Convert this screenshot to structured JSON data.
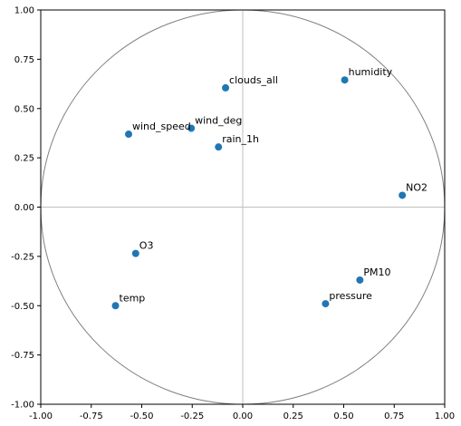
{
  "chart_data": {
    "type": "scatter",
    "title": "",
    "xlabel": "",
    "ylabel": "",
    "xlim": [
      -1.0,
      1.0
    ],
    "ylim": [
      -1.0,
      1.0
    ],
    "grid": false,
    "reference_circle_radius": 1.0,
    "reference_lines": [
      0,
      0
    ],
    "xticks": [
      "-1.00",
      "-0.75",
      "-0.50",
      "-0.25",
      "0.00",
      "0.25",
      "0.50",
      "0.75",
      "1.00"
    ],
    "yticks": [
      "1.00",
      "0.75",
      "0.50",
      "0.25",
      "0.00",
      "-0.25",
      "-0.50",
      "-0.75",
      "-1.00"
    ],
    "xtick_values": [
      -1.0,
      -0.75,
      -0.5,
      -0.25,
      0.0,
      0.25,
      0.5,
      0.75,
      1.0
    ],
    "ytick_values": [
      1.0,
      0.75,
      0.5,
      0.25,
      0.0,
      -0.25,
      -0.5,
      -0.75,
      -1.0
    ],
    "points": [
      {
        "label": "humidity",
        "x": 0.505,
        "y": 0.645
      },
      {
        "label": "clouds_all",
        "x": -0.085,
        "y": 0.605
      },
      {
        "label": "wind_deg",
        "x": -0.255,
        "y": 0.4
      },
      {
        "label": "wind_speed",
        "x": -0.565,
        "y": 0.37
      },
      {
        "label": "rain_1h",
        "x": -0.12,
        "y": 0.305
      },
      {
        "label": "NO2",
        "x": 0.79,
        "y": 0.06
      },
      {
        "label": "O3",
        "x": -0.53,
        "y": -0.235
      },
      {
        "label": "PM10",
        "x": 0.58,
        "y": -0.37
      },
      {
        "label": "pressure",
        "x": 0.41,
        "y": -0.49
      },
      {
        "label": "temp",
        "x": -0.63,
        "y": -0.5
      }
    ],
    "marker_color": "#1f77b4",
    "circle_color": "#808080",
    "axis_line_color": "#bfbfbf"
  }
}
